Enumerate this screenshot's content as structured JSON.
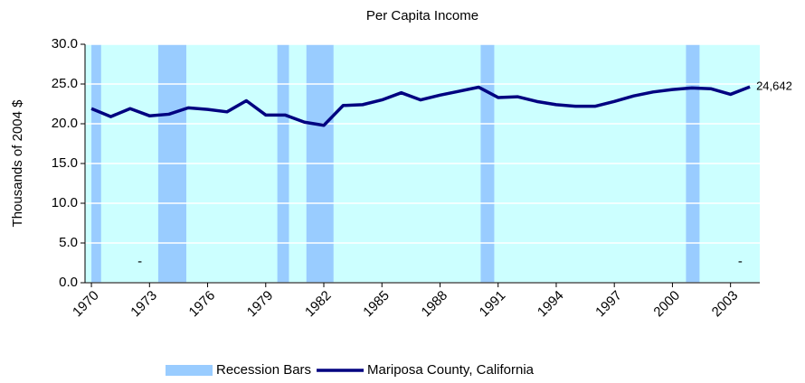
{
  "chart_data": {
    "type": "line",
    "title": "Per Capita Income",
    "ylabel": "Thousands of 2004 $",
    "x": [
      1970,
      1971,
      1972,
      1973,
      1974,
      1975,
      1976,
      1977,
      1978,
      1979,
      1980,
      1981,
      1982,
      1983,
      1984,
      1985,
      1986,
      1987,
      1988,
      1989,
      1990,
      1991,
      1992,
      1993,
      1994,
      1995,
      1996,
      1997,
      1998,
      1999,
      2000,
      2001,
      2002,
      2003,
      2004
    ],
    "series": [
      {
        "name": "Recession Bars",
        "type": "span",
        "color": "#99ccff",
        "spans": [
          [
            1970,
            1970.5
          ],
          [
            1973.45,
            1974.9
          ],
          [
            1979.6,
            1980.2
          ],
          [
            1981.1,
            1982.5
          ],
          [
            1990.1,
            1990.8
          ],
          [
            2000.7,
            2001.4
          ]
        ]
      },
      {
        "name": "Mariposa County, California",
        "type": "line",
        "color": "#000080",
        "values": [
          21.9,
          20.9,
          21.9,
          21.0,
          21.2,
          22.0,
          21.8,
          21.5,
          22.9,
          21.1,
          21.1,
          20.2,
          19.8,
          22.3,
          22.4,
          23.0,
          23.9,
          23.0,
          23.6,
          24.1,
          24.6,
          23.3,
          23.4,
          22.8,
          22.4,
          22.2,
          22.2,
          22.8,
          23.5,
          24.0,
          24.3,
          24.5,
          24.4,
          23.7,
          24.642
        ],
        "value_labels": [
          null,
          null,
          null,
          null,
          null,
          null,
          null,
          null,
          null,
          null,
          null,
          null,
          null,
          null,
          null,
          null,
          null,
          null,
          null,
          null,
          null,
          null,
          null,
          null,
          null,
          null,
          null,
          null,
          null,
          null,
          null,
          null,
          null,
          null,
          "24,642"
        ]
      }
    ],
    "annotations": [
      {
        "text": "-",
        "x": 1972.5,
        "y": 2.6
      },
      {
        "text": "-",
        "x": 2003.5,
        "y": 2.6
      }
    ],
    "xlim": [
      1969.67,
      2004.51
    ],
    "xticks": [
      1970,
      1973,
      1976,
      1979,
      1982,
      1985,
      1988,
      1991,
      1994,
      1997,
      2000,
      2003
    ],
    "ylim": [
      0,
      30
    ],
    "yticks": [
      {
        "value": 0,
        "label": "0.0"
      },
      {
        "value": 5,
        "label": "5.0"
      },
      {
        "value": 10,
        "label": "10.0"
      },
      {
        "value": 15,
        "label": "15.0"
      },
      {
        "value": 20,
        "label": "20.0"
      },
      {
        "value": 25,
        "label": "25.0"
      },
      {
        "value": 30,
        "label": "30.0"
      }
    ],
    "grid": true,
    "plot_background": "#ccffff",
    "legend": "bottom"
  }
}
